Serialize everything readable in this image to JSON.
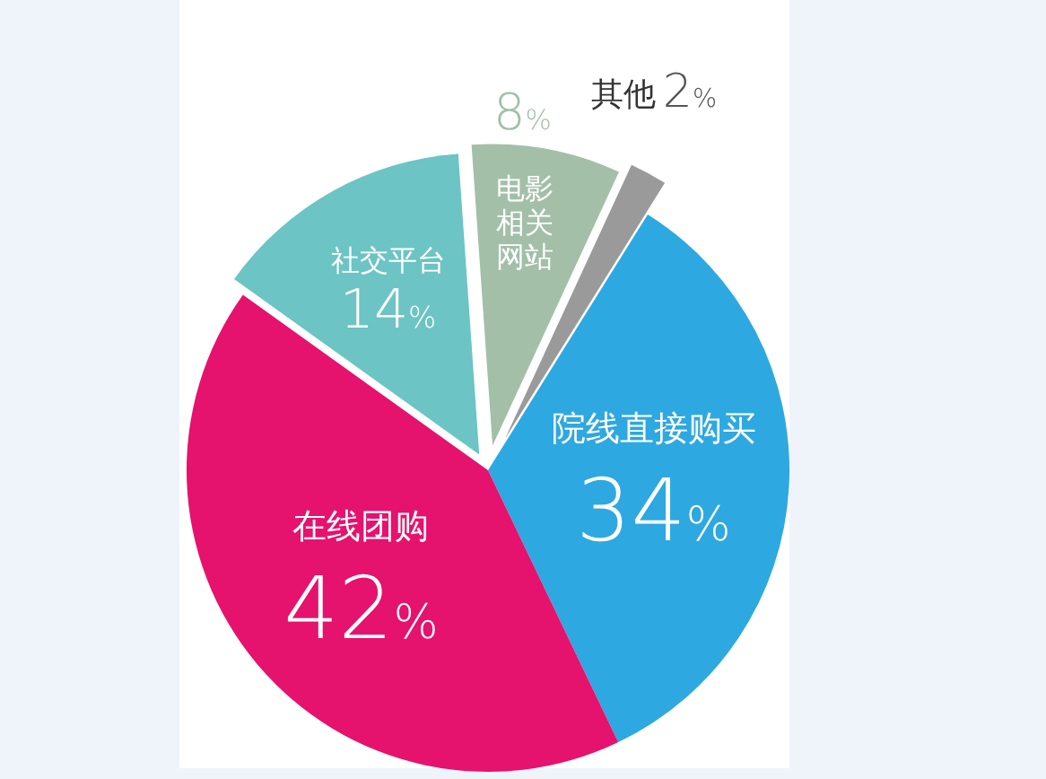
{
  "chart_data": {
    "type": "pie",
    "categories": [
      "院线直接购买",
      "在线团购",
      "社交平台",
      "电影相关网站",
      "其他"
    ],
    "values": [
      34,
      42,
      14,
      8,
      2
    ],
    "colors": [
      "#2ea8e0",
      "#e5126e",
      "#6cc4c4",
      "#a3bfa8",
      "#9a9a9a"
    ],
    "value_labels": [
      "34%",
      "42%",
      "14%",
      "8%",
      "2%"
    ]
  }
}
